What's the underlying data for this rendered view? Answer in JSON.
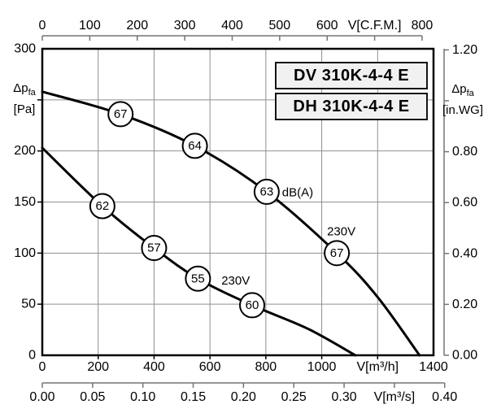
{
  "legend": {
    "models": [
      "DV 310K-4-4 E",
      "DH 310K-4-4 E"
    ]
  },
  "colors": {
    "curve": "#000000",
    "grid": "#8f8f8f",
    "secondary_axis": "#757575",
    "plot_border": "#000000",
    "text": "#000000",
    "legend_bg": "#f1f1f1",
    "circle_fill": "#ffffff"
  },
  "chart_data": {
    "type": "line",
    "title": "Fan performance curves DV 310K-4-4 E / DH 310K-4-4 E",
    "x_unit_primary": "m3/h",
    "y_unit_primary": "Pa",
    "axes": {
      "top_cfm": {
        "axis_label": "V[C.F.M.]",
        "axis_label_at": 700,
        "range": [
          0,
          800
        ],
        "ticks": [
          {
            "v": 0,
            "label": "0"
          },
          {
            "v": 100,
            "label": "100"
          },
          {
            "v": 200,
            "label": "200"
          },
          {
            "v": 300,
            "label": "300"
          },
          {
            "v": 400,
            "label": "400"
          },
          {
            "v": 500,
            "label": "500"
          },
          {
            "v": 600,
            "label": "600"
          },
          {
            "v": 700,
            "label": null
          },
          {
            "v": 800,
            "label": "800"
          }
        ]
      },
      "left_pa": {
        "title_main": "Δp",
        "title_sub": "fa",
        "title_unit": "[Pa]",
        "title_at": 250,
        "range": [
          0,
          300
        ],
        "ticks": [
          {
            "v": 0,
            "label": "0"
          },
          {
            "v": 50,
            "label": "50"
          },
          {
            "v": 100,
            "label": "100"
          },
          {
            "v": 150,
            "label": "150"
          },
          {
            "v": 200,
            "label": "200"
          },
          {
            "v": 250,
            "label": null
          },
          {
            "v": 300,
            "label": "300"
          }
        ]
      },
      "right_inwg": {
        "title_main": "Δp",
        "title_sub": "fa",
        "title_unit": "[in.WG]",
        "title_at": 1.0,
        "range": [
          0,
          1.2
        ],
        "ticks": [
          {
            "v": 0,
            "label": "0.00"
          },
          {
            "v": 0.2,
            "label": "0.20"
          },
          {
            "v": 0.4,
            "label": "0.40"
          },
          {
            "v": 0.6,
            "label": "0.60"
          },
          {
            "v": 0.8,
            "label": "0.80"
          },
          {
            "v": 1.0,
            "label": null
          },
          {
            "v": 1.2,
            "label": "1.20"
          }
        ]
      },
      "bottom_m3h": {
        "axis_label": "V[m³/h]",
        "axis_label_at": 1200,
        "range": [
          0,
          1400
        ],
        "ticks": [
          {
            "v": 0,
            "label": "0"
          },
          {
            "v": 200,
            "label": "200"
          },
          {
            "v": 400,
            "label": "400"
          },
          {
            "v": 600,
            "label": "600"
          },
          {
            "v": 800,
            "label": "800"
          },
          {
            "v": 1000,
            "label": "1000"
          },
          {
            "v": 1200,
            "label": null
          },
          {
            "v": 1400,
            "label": "1400"
          }
        ]
      },
      "bottom_m3s": {
        "axis_label": "V[m³/s]",
        "axis_label_at": 0.35,
        "range": [
          0,
          0.4
        ],
        "ticks": [
          {
            "v": 0,
            "label": "0.00"
          },
          {
            "v": 0.05,
            "label": "0.05"
          },
          {
            "v": 0.1,
            "label": "0.10"
          },
          {
            "v": 0.15,
            "label": "0.15"
          },
          {
            "v": 0.2,
            "label": "0.20"
          },
          {
            "v": 0.25,
            "label": "0.25"
          },
          {
            "v": 0.3,
            "label": "0.30"
          },
          {
            "v": 0.35,
            "label": null
          },
          {
            "v": 0.4,
            "label": "0.40"
          }
        ]
      }
    },
    "grid": {
      "x_m3h": [
        200,
        400,
        600,
        800,
        1000,
        1200
      ],
      "y_pa": [
        50,
        100,
        150,
        200,
        250
      ]
    },
    "series": [
      {
        "id": "curve-upper-230v",
        "voltage": "230V",
        "points": [
          [
            0,
            258
          ],
          [
            280,
            236
          ],
          [
            546,
            205
          ],
          [
            803,
            160
          ],
          [
            1054,
            100
          ],
          [
            1200,
            57
          ],
          [
            1350,
            0
          ]
        ],
        "db_labels": [
          {
            "v": 280,
            "p": 236,
            "db": "67"
          },
          {
            "v": 546,
            "p": 205,
            "db": "64"
          },
          {
            "v": 803,
            "p": 160,
            "db": "63"
          },
          {
            "v": 1054,
            "p": 100,
            "db": "67"
          }
        ],
        "voltage_label": {
          "text": "230V",
          "v": 1070,
          "p": 121,
          "anchor": "middle"
        }
      },
      {
        "id": "curve-lower-230v",
        "voltage": "230V",
        "points": [
          [
            0,
            203
          ],
          [
            215,
            146
          ],
          [
            400,
            105
          ],
          [
            557,
            75
          ],
          [
            751,
            49
          ],
          [
            950,
            26
          ],
          [
            1120,
            0
          ]
        ],
        "db_labels": [
          {
            "v": 215,
            "p": 146,
            "db": "62"
          },
          {
            "v": 400,
            "p": 105,
            "db": "57"
          },
          {
            "v": 557,
            "p": 75,
            "db": "55"
          },
          {
            "v": 751,
            "p": 49,
            "db": "60"
          }
        ],
        "voltage_label": {
          "text": "230V",
          "v": 692,
          "p": 73,
          "anchor": "middle"
        }
      }
    ],
    "annotations": [
      {
        "text": "dB(A)",
        "v": 858,
        "p": 159,
        "anchor": "start"
      }
    ]
  }
}
